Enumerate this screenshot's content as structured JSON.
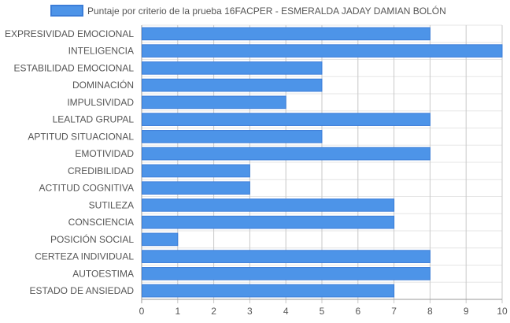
{
  "chart_data": {
    "type": "bar",
    "orientation": "horizontal",
    "legend": {
      "label": "Puntaje por criterio de la prueba 16FACPER - ESMERALDA JADAY DAMIAN BOLÓN",
      "position": "top"
    },
    "categories": [
      "EXPRESIVIDAD EMOCIONAL",
      "INTELIGENCIA",
      "ESTABILIDAD EMOCIONAL",
      "DOMINACIÓN",
      "IMPULSIVIDAD",
      "LEALTAD GRUPAL",
      "APTITUD SITUACIONAL",
      "EMOTIVIDAD",
      "CREDIBILIDAD",
      "ACTITUD COGNITIVA",
      "SUTILEZA",
      "CONSCIENCIA",
      "POSICIÓN SOCIAL",
      "CERTEZA INDIVIDUAL",
      "AUTOESTIMA",
      "ESTADO DE ANSIEDAD"
    ],
    "series": [
      {
        "name": "Puntaje por criterio de la prueba 16FACPER - ESMERALDA JADAY DAMIAN BOLÓN",
        "values": [
          8,
          10,
          5,
          5,
          4,
          8,
          5,
          8,
          3,
          3,
          7,
          7,
          1,
          8,
          8,
          7
        ]
      }
    ],
    "xlim": [
      0,
      10
    ],
    "x_ticks": [
      "0",
      "1",
      "2",
      "3",
      "4",
      "5",
      "6",
      "7",
      "8",
      "9",
      "10"
    ],
    "grid": true,
    "colors": {
      "bar_fill": "#4d94e8",
      "bar_border": "#3b7dd8",
      "grid": "#e5e5e5",
      "axis": "#9a9a9a"
    }
  }
}
